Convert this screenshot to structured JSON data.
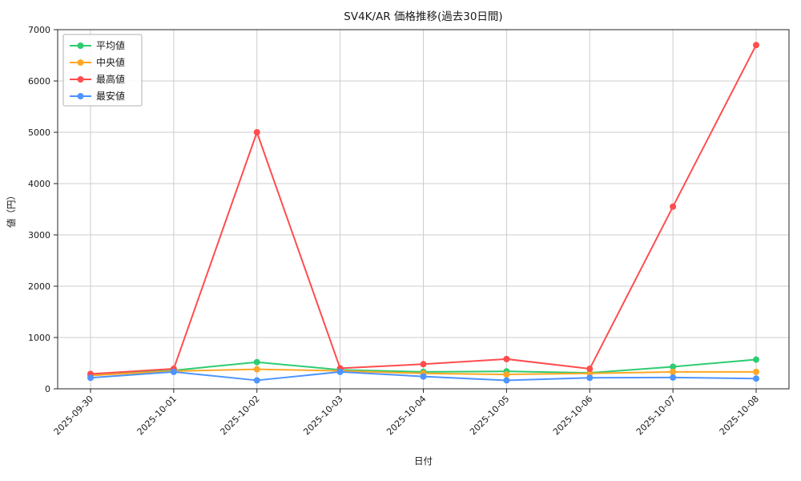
{
  "chart_data": {
    "type": "line",
    "title": "SV4K/AR 価格推移(過去30日間)",
    "xlabel": "日付",
    "ylabel": "値（円）",
    "ylim": [
      0,
      7000
    ],
    "yticks": [
      0,
      1000,
      2000,
      3000,
      4000,
      5000,
      6000,
      7000
    ],
    "grid": true,
    "legend_position": "upper left",
    "marker": "circle",
    "categories": [
      "2025-09-30",
      "2025-10-01",
      "2025-10-02",
      "2025-10-03",
      "2025-10-04",
      "2025-10-05",
      "2025-10-06",
      "2025-10-07",
      "2025-10-08"
    ],
    "series": [
      {
        "key": "mean",
        "name": "平均値",
        "color": "#2ecc71",
        "values": [
          270,
          360,
          520,
          370,
          330,
          340,
          310,
          430,
          570
        ]
      },
      {
        "key": "median",
        "name": "中央値",
        "color": "#ffa726",
        "values": [
          260,
          345,
          380,
          350,
          300,
          280,
          300,
          330,
          330
        ]
      },
      {
        "key": "max",
        "name": "最高値",
        "color": "#ff4d4d",
        "values": [
          290,
          390,
          5000,
          400,
          480,
          580,
          390,
          3550,
          6700
        ]
      },
      {
        "key": "min",
        "name": "最安値",
        "color": "#4d94ff",
        "values": [
          215,
          330,
          165,
          330,
          240,
          165,
          215,
          220,
          200
        ]
      }
    ]
  }
}
